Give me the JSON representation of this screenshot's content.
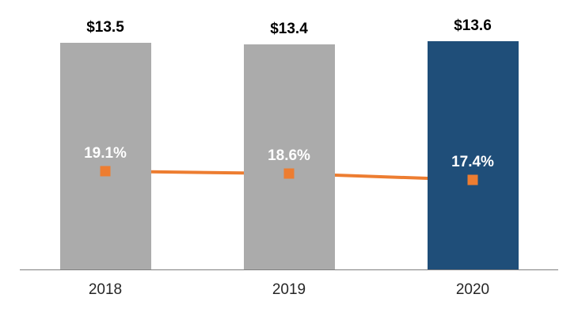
{
  "chart_data": {
    "type": "bar",
    "title": "",
    "categories": [
      "2018",
      "2019",
      "2020"
    ],
    "series": [
      {
        "name": "amount-bars",
        "type": "bar",
        "values": [
          13.5,
          13.4,
          13.6
        ],
        "labels": [
          "$13.5",
          "$13.4",
          "$13.6"
        ]
      },
      {
        "name": "percent-line",
        "type": "line",
        "values": [
          19.1,
          18.6,
          17.4
        ],
        "labels": [
          "19.1%",
          "18.6%",
          "17.4%"
        ]
      }
    ],
    "bar_colors": [
      "#ABABAB",
      "#ABABAB",
      "#1F4E79"
    ],
    "line_color": "#ED7D31",
    "marker": "square",
    "axis_line_color": "#808080",
    "gridlines": false,
    "legend": "none",
    "value_axis_hidden": true,
    "ylim_bar": [
      0,
      14.5
    ],
    "ylim_line": [
      0,
      45
    ]
  }
}
